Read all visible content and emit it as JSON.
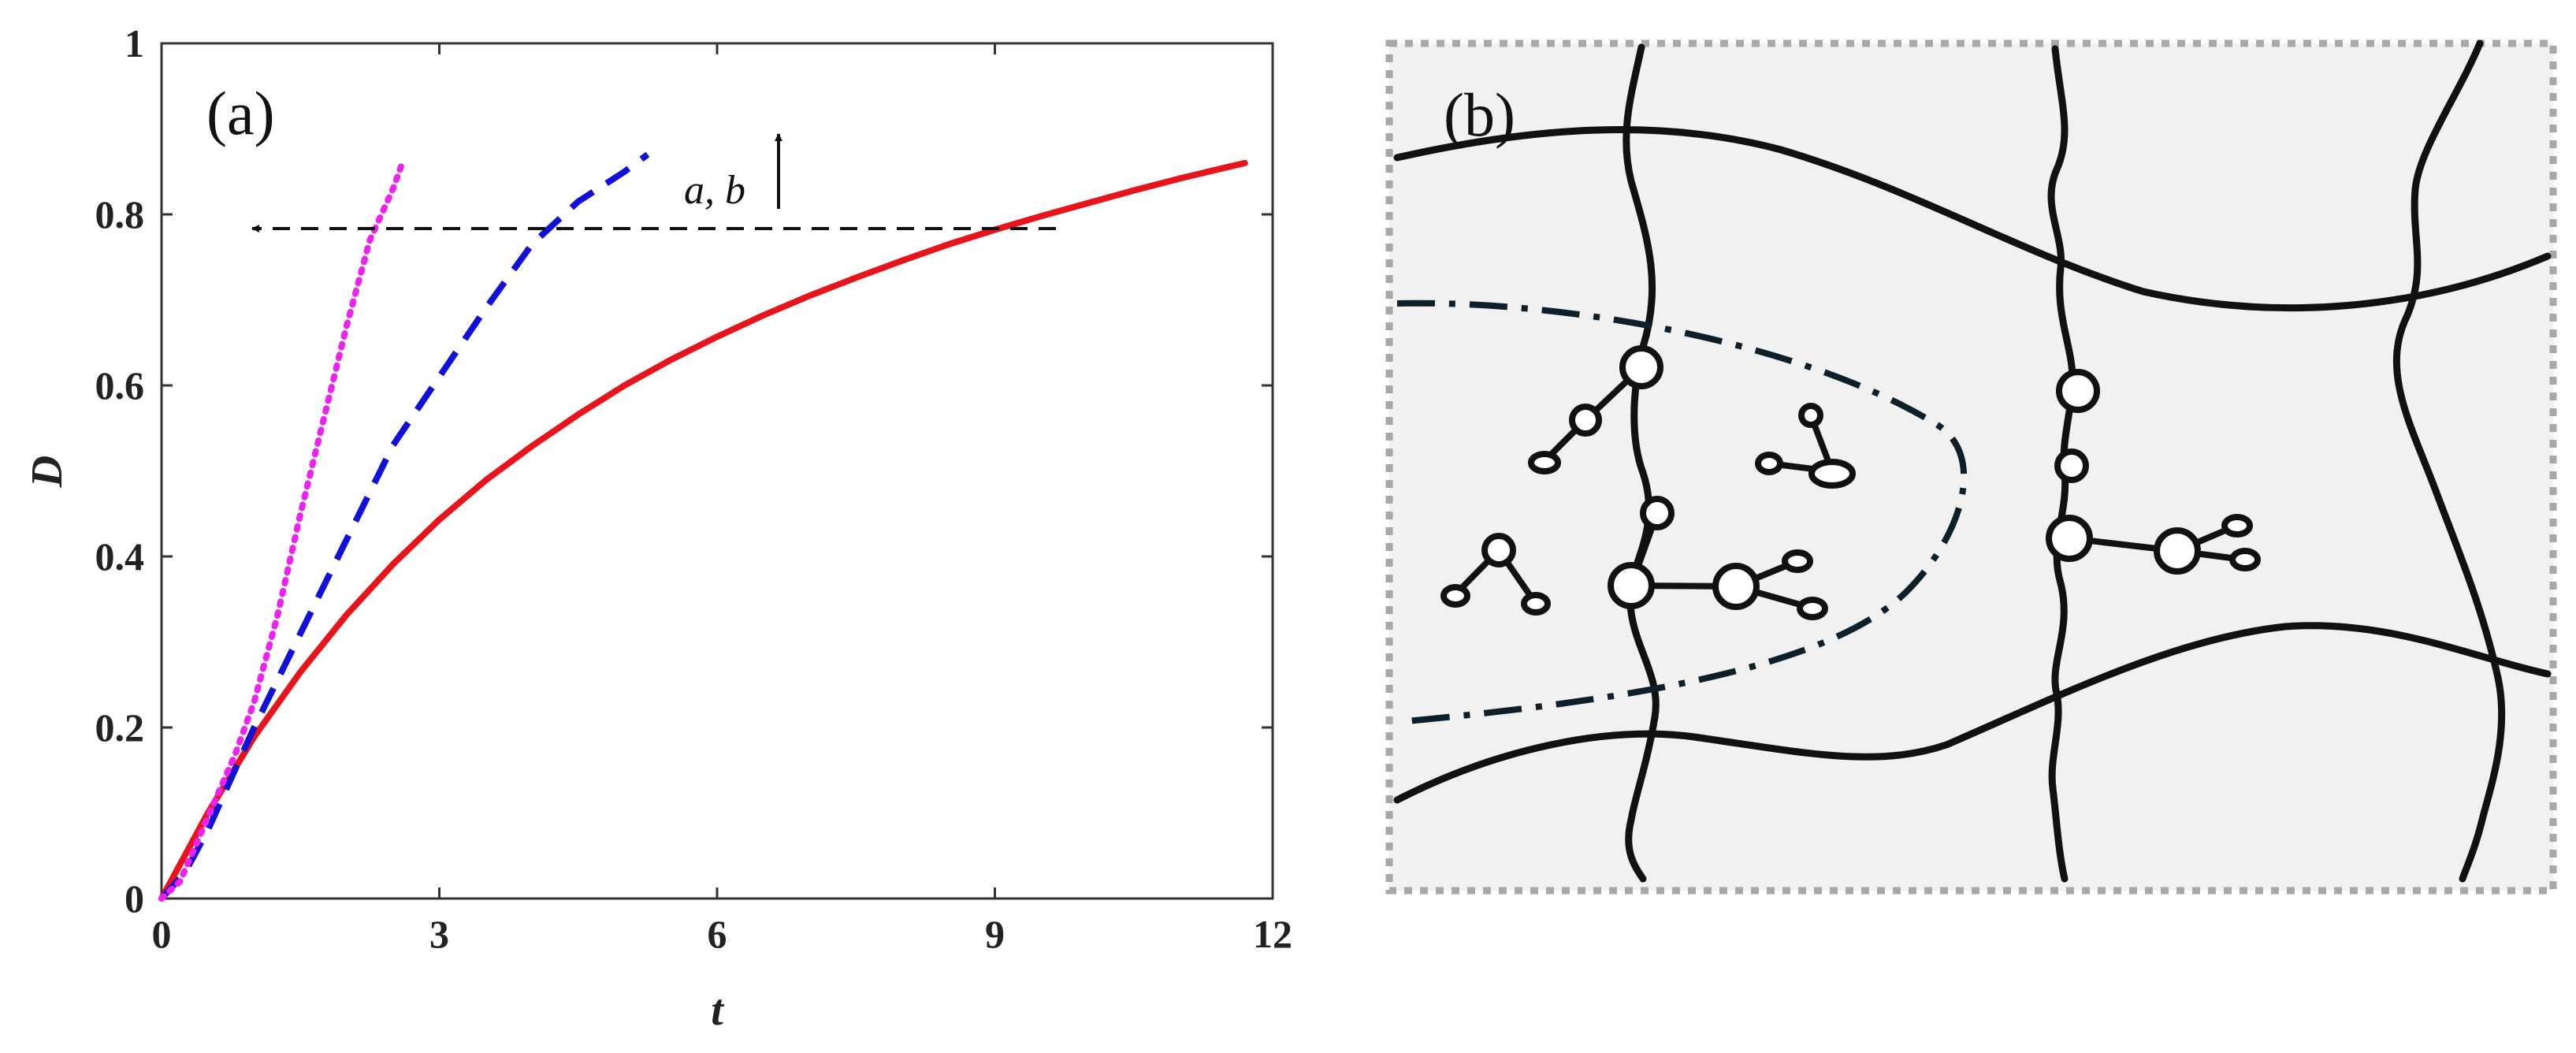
{
  "chart_data": {
    "type": "line",
    "xlabel": "t",
    "ylabel": "D",
    "xlim": [
      0,
      12
    ],
    "ylim": [
      0,
      1
    ],
    "xticks": [
      0,
      3,
      6,
      9,
      12
    ],
    "xtick_labels": [
      "0",
      "3",
      "6",
      "9",
      "12"
    ],
    "yticks": [
      0,
      0.2,
      0.4,
      0.6,
      0.8,
      1
    ],
    "ytick_labels": [
      "0",
      "0.2",
      "0.4",
      "0.6",
      "0.8",
      "1"
    ],
    "grid": false,
    "series": [
      {
        "style": "solid",
        "color": "#e8141b",
        "x": [
          0,
          0.5,
          1,
          1.5,
          2,
          2.5,
          3,
          3.5,
          4,
          4.5,
          5,
          5.5,
          6,
          6.5,
          7,
          7.5,
          8,
          8.5,
          9,
          9.5,
          10,
          10.5,
          11,
          11.5,
          11.7
        ],
        "y": [
          0,
          0.1,
          0.189,
          0.265,
          0.332,
          0.391,
          0.443,
          0.489,
          0.529,
          0.566,
          0.6,
          0.63,
          0.657,
          0.682,
          0.705,
          0.726,
          0.746,
          0.765,
          0.782,
          0.798,
          0.813,
          0.828,
          0.842,
          0.855,
          0.86
        ]
      },
      {
        "style": "dashed",
        "color": "#1010d8",
        "x": [
          0,
          0.25,
          0.5,
          0.75,
          1,
          1.5,
          2,
          2.5,
          3,
          3.5,
          4,
          4.5,
          5,
          5.25
        ],
        "y": [
          0,
          0.03,
          0.08,
          0.14,
          0.2,
          0.31,
          0.42,
          0.53,
          0.61,
          0.69,
          0.765,
          0.815,
          0.85,
          0.87
        ]
      },
      {
        "style": "dotted",
        "color": "#ee22ee",
        "x": [
          0,
          0.2,
          0.4,
          0.6,
          0.8,
          1,
          1.25,
          1.5,
          1.75,
          2,
          2.25,
          2.5,
          2.6
        ],
        "y": [
          0,
          0.02,
          0.07,
          0.12,
          0.17,
          0.23,
          0.33,
          0.45,
          0.56,
          0.67,
          0.77,
          0.83,
          0.86
        ]
      }
    ],
    "annotations": {
      "panel_label": "(a)",
      "arrow_label": "a, b"
    }
  },
  "diagram": {
    "panel_label": "(b)"
  }
}
